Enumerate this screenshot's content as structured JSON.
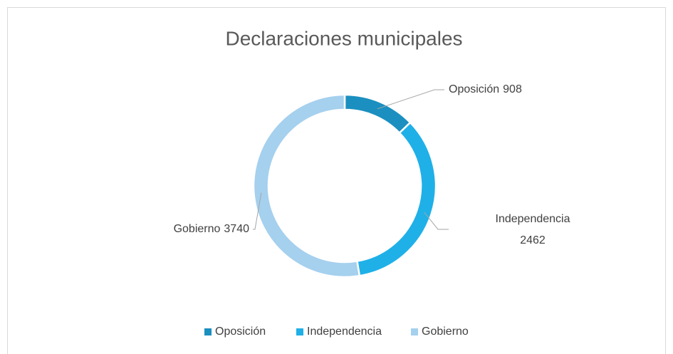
{
  "chart_data": {
    "type": "doughnut",
    "title": "Declaraciones municipales",
    "categories": [
      "Oposición",
      "Independencia",
      "Gobierno"
    ],
    "values": [
      908,
      2462,
      3740
    ],
    "colors": [
      "#1b8fc0",
      "#1fb0e8",
      "#a5d0ee"
    ],
    "legend": "bottom"
  }
}
